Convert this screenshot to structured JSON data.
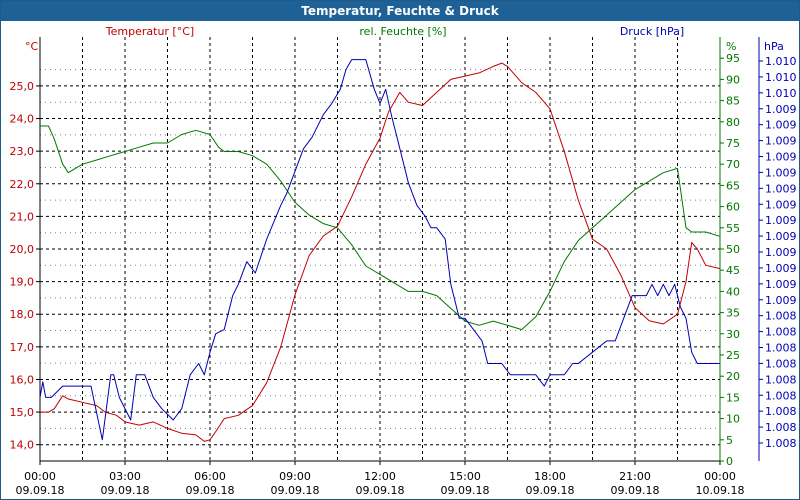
{
  "window": {
    "title": "Temperatur, Feuchte & Druck"
  },
  "chart_data": {
    "type": "line",
    "title": "Temperatur, Feuchte & Druck",
    "colors": {
      "temperature": "#c00000",
      "humidity": "#007800",
      "pressure": "#0000b4",
      "grid": "#000000",
      "titlebar": "#1d6196"
    },
    "axes": {
      "temperature": {
        "title": "Temperatur [°C]",
        "unit": "°C",
        "ylim": [
          13.5,
          26.5
        ],
        "ticks": [
          "14,0",
          "15,0",
          "16,0",
          "17,0",
          "18,0",
          "19,0",
          "20,0",
          "21,0",
          "22,0",
          "23,0",
          "24,0",
          "25,0"
        ]
      },
      "humidity": {
        "title": "rel. Feuchte [%]",
        "unit": "%",
        "ylim": [
          0,
          100
        ],
        "ticks": [
          "0",
          "5",
          "10",
          "15",
          "20",
          "25",
          "30",
          "35",
          "40",
          "45",
          "50",
          "55",
          "60",
          "65",
          "70",
          "75",
          "80",
          "85",
          "90",
          "95"
        ]
      },
      "pressure": {
        "title": "Druck [hPa]",
        "unit": "hPa",
        "ylim": [
          1007.5,
          1010.5
        ],
        "ticks": [
          "1.008",
          "1.008",
          "1.008",
          "1.008",
          "1.008",
          "1.008",
          "1.008",
          "1.008",
          "1.008",
          "1.009",
          "1.009",
          "1.009",
          "1.009",
          "1.009",
          "1.009",
          "1.009",
          "1.009",
          "1.009",
          "1.009",
          "1.009",
          "1.009",
          "1.009",
          "1.010",
          "1.010",
          "1.010"
        ]
      }
    },
    "x_ticks": [
      {
        "time": "00:00",
        "date": "09.09.18"
      },
      {
        "time": "03:00",
        "date": "09.09.18"
      },
      {
        "time": "06:00",
        "date": "09.09.18"
      },
      {
        "time": "09:00",
        "date": "09.09.18"
      },
      {
        "time": "12:00",
        "date": "09.09.18"
      },
      {
        "time": "15:00",
        "date": "09.09.18"
      },
      {
        "time": "18:00",
        "date": "09.09.18"
      },
      {
        "time": "21:00",
        "date": "09.09.18"
      },
      {
        "time": "00:00",
        "date": "10.09.18"
      }
    ],
    "xlim_hours": [
      0,
      24
    ],
    "grid": true,
    "series": [
      {
        "name": "Temperatur [°C]",
        "axis": "temperature",
        "x": [
          0,
          0.3,
          0.5,
          0.8,
          1.0,
          1.5,
          2.0,
          2.3,
          2.7,
          3.0,
          3.5,
          4.0,
          4.5,
          5.0,
          5.5,
          5.8,
          6.0,
          6.2,
          6.5,
          7.0,
          7.5,
          8.0,
          8.5,
          9.0,
          9.5,
          10.0,
          10.5,
          11.0,
          11.5,
          12.0,
          12.3,
          12.7,
          13.0,
          13.5,
          14.0,
          14.5,
          15.0,
          15.5,
          16.0,
          16.3,
          16.5,
          16.7,
          17.0,
          17.5,
          18.0,
          18.5,
          19.0,
          19.5,
          20.0,
          20.5,
          21.0,
          21.5,
          22.0,
          22.5,
          22.8,
          23.0,
          23.2,
          23.5,
          24.0
        ],
        "y": [
          15.0,
          15.0,
          15.1,
          15.5,
          15.4,
          15.3,
          15.2,
          15.0,
          14.9,
          14.7,
          14.6,
          14.7,
          14.5,
          14.35,
          14.3,
          14.1,
          14.15,
          14.4,
          14.8,
          14.9,
          15.2,
          15.9,
          17.0,
          18.6,
          19.8,
          20.4,
          20.7,
          21.6,
          22.6,
          23.4,
          24.2,
          24.8,
          24.5,
          24.4,
          24.8,
          25.2,
          25.3,
          25.4,
          25.6,
          25.7,
          25.6,
          25.4,
          25.1,
          24.8,
          24.3,
          23.0,
          21.5,
          20.3,
          20.0,
          19.2,
          18.2,
          17.8,
          17.7,
          18.0,
          19.0,
          20.2,
          20.0,
          19.5,
          19.4
        ]
      },
      {
        "name": "rel. Feuchte [%]",
        "axis": "humidity",
        "x": [
          0,
          0.3,
          0.5,
          0.8,
          1.0,
          1.5,
          2.0,
          2.5,
          3.0,
          3.5,
          4.0,
          4.5,
          5.0,
          5.5,
          6.0,
          6.3,
          6.5,
          7.0,
          7.5,
          8.0,
          8.5,
          9.0,
          9.5,
          10.0,
          10.5,
          11.0,
          11.5,
          12.0,
          12.5,
          13.0,
          13.5,
          14.0,
          14.5,
          15.0,
          15.5,
          16.0,
          16.5,
          17.0,
          17.5,
          18.0,
          18.5,
          19.0,
          19.5,
          20.0,
          20.5,
          21.0,
          21.5,
          22.0,
          22.5,
          22.8,
          23.0,
          23.5,
          24.0
        ],
        "y": [
          79,
          79,
          76,
          70,
          68,
          70,
          71,
          72,
          73,
          74,
          75,
          75,
          77,
          78,
          77,
          74,
          73,
          73,
          72,
          70,
          66,
          61,
          58,
          56,
          55,
          51,
          46,
          44,
          42,
          40,
          40,
          39,
          36,
          33,
          32,
          33,
          32,
          31,
          34,
          40,
          47,
          52,
          55,
          58,
          61,
          64,
          66,
          68,
          69,
          55,
          54,
          54,
          53
        ]
      },
      {
        "name": "Druck [hPa]",
        "axis": "pressure",
        "x": [
          0,
          0.1,
          0.2,
          0.4,
          0.8,
          1.0,
          1.3,
          1.8,
          2.2,
          2.5,
          2.6,
          2.8,
          3.0,
          3.2,
          3.4,
          3.7,
          4.0,
          4.3,
          4.7,
          5.0,
          5.3,
          5.6,
          5.8,
          6.0,
          6.2,
          6.5,
          6.8,
          7.0,
          7.3,
          7.6,
          8.0,
          8.5,
          8.7,
          9.0,
          9.3,
          9.6,
          10.0,
          10.3,
          10.6,
          10.8,
          11.0,
          11.5,
          11.8,
          12.0,
          12.2,
          12.4,
          12.6,
          12.8,
          13.0,
          13.3,
          13.6,
          13.8,
          14.0,
          14.3,
          14.5,
          14.8,
          15.0,
          15.3,
          15.6,
          15.8,
          16.0,
          16.3,
          16.6,
          16.8,
          17.0,
          17.5,
          17.8,
          18.0,
          18.5,
          18.8,
          19.0,
          19.5,
          20.0,
          20.3,
          20.6,
          20.9,
          21.1,
          21.4,
          21.6,
          21.8,
          22.0,
          22.2,
          22.4,
          22.6,
          22.8,
          23.0,
          23.2,
          23.4,
          23.6,
          23.8,
          24.0
        ],
        "y": [
          1007.95,
          1008.06,
          1007.95,
          1007.95,
          1008.03,
          1008.03,
          1008.03,
          1008.03,
          1007.65,
          1008.11,
          1008.11,
          1007.95,
          1007.87,
          1007.79,
          1008.11,
          1008.11,
          1007.95,
          1007.87,
          1007.79,
          1007.87,
          1008.11,
          1008.19,
          1008.11,
          1008.27,
          1008.4,
          1008.43,
          1008.67,
          1008.75,
          1008.91,
          1008.83,
          1009.07,
          1009.31,
          1009.39,
          1009.55,
          1009.71,
          1009.79,
          1009.95,
          1010.03,
          1010.13,
          1010.27,
          1010.34,
          1010.34,
          1010.13,
          1010.03,
          1010.13,
          1009.95,
          1009.79,
          1009.63,
          1009.47,
          1009.31,
          1009.23,
          1009.15,
          1009.15,
          1009.07,
          1008.75,
          1008.51,
          1008.51,
          1008.43,
          1008.35,
          1008.19,
          1008.19,
          1008.19,
          1008.11,
          1008.11,
          1008.11,
          1008.11,
          1008.03,
          1008.11,
          1008.11,
          1008.19,
          1008.19,
          1008.27,
          1008.35,
          1008.35,
          1008.51,
          1008.67,
          1008.67,
          1008.67,
          1008.75,
          1008.67,
          1008.75,
          1008.67,
          1008.75,
          1008.59,
          1008.51,
          1008.27,
          1008.19,
          1008.19,
          1008.19,
          1008.19,
          1008.19
        ]
      }
    ]
  }
}
